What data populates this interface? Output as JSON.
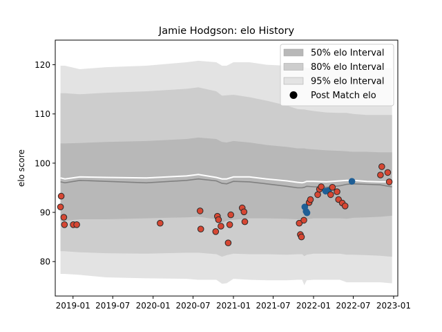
{
  "chart_data": {
    "type": "line",
    "title": "Jamie Hodgson: elo History",
    "xlabel": "",
    "ylabel": "elo score",
    "xlim": [
      "2018-10-12",
      "2023-01-20"
    ],
    "ylim": [
      73,
      125
    ],
    "x_ticks": [
      "2019-01",
      "2019-07",
      "2020-01",
      "2020-07",
      "2021-01",
      "2021-07",
      "2022-01",
      "2022-07",
      "2023-01"
    ],
    "y_ticks": [
      80,
      90,
      100,
      110,
      120
    ],
    "grid": false,
    "legend_position": "upper right",
    "colors": {
      "band95": "#e3e3e3",
      "band80": "#cdcdcd",
      "band50": "#b8b8b8",
      "median_line": "#808080",
      "mean_line": "#ffffff",
      "red_point": "#d64733",
      "blue_point": "#1f5f96",
      "point_edge": "#2a2a2a"
    },
    "legend": [
      {
        "label": "50% elo Interval",
        "kind": "band50"
      },
      {
        "label": "80% elo Interval",
        "kind": "band80"
      },
      {
        "label": "95% elo Interval",
        "kind": "band95"
      },
      {
        "label": "Post Match elo",
        "kind": "marker"
      }
    ],
    "series": [
      {
        "name": "95% elo Interval",
        "type": "band",
        "x": [
          "2018-11-05",
          "2018-11-25",
          "2019-02-01",
          "2019-06-01",
          "2019-12-01",
          "2020-06-01",
          "2020-07-25",
          "2020-10-15",
          "2020-11-10",
          "2020-12-01",
          "2021-01-01",
          "2021-03-15",
          "2021-06-01",
          "2021-09-01",
          "2021-10-20",
          "2021-11-10",
          "2021-11-20",
          "2021-12-01",
          "2022-01-01",
          "2022-03-01",
          "2022-05-01",
          "2022-06-01",
          "2022-07-01",
          "2022-09-01",
          "2022-11-01",
          "2022-12-20",
          "2022-12-25"
        ],
        "upper": [
          119.8,
          119.8,
          119.1,
          119.5,
          119.8,
          120.5,
          120.8,
          120.5,
          119.8,
          119.8,
          120.5,
          120.5,
          120.0,
          119.8,
          119.5,
          119.5,
          119.5,
          119.3,
          119.3,
          119.3,
          119.3,
          119.3,
          119.3,
          119.3,
          119.3,
          119.3,
          119.3
        ],
        "lower": [
          77.5,
          77.5,
          77.3,
          76.8,
          76.6,
          76.5,
          76.3,
          76.3,
          75.5,
          75.6,
          76.5,
          76.3,
          76.2,
          76.2,
          76.3,
          76.3,
          75.2,
          76.2,
          76.3,
          76.3,
          76.3,
          75.8,
          75.8,
          75.8,
          75.8,
          75.6,
          75.6
        ]
      },
      {
        "name": "80% elo Interval",
        "type": "band",
        "x": [
          "2018-11-05",
          "2018-11-25",
          "2019-02-01",
          "2019-06-01",
          "2019-12-01",
          "2020-06-01",
          "2020-07-25",
          "2020-10-15",
          "2020-11-10",
          "2020-12-01",
          "2021-01-01",
          "2021-03-15",
          "2021-06-01",
          "2021-09-01",
          "2021-10-20",
          "2021-11-10",
          "2021-11-20",
          "2021-12-01",
          "2022-01-01",
          "2022-03-01",
          "2022-05-01",
          "2022-06-01",
          "2022-07-01",
          "2022-09-01",
          "2022-11-01",
          "2022-12-20",
          "2022-12-25"
        ],
        "upper": [
          114.2,
          114.2,
          114.0,
          114.3,
          114.6,
          115.1,
          115.4,
          114.6,
          113.7,
          113.8,
          113.9,
          113.4,
          112.7,
          111.7,
          111.0,
          110.9,
          110.9,
          110.8,
          110.6,
          110.3,
          110.2,
          110.2,
          110.0,
          109.8,
          109.8,
          109.8,
          109.8
        ],
        "lower": [
          82.1,
          82.1,
          81.9,
          81.7,
          81.6,
          81.8,
          81.8,
          81.5,
          81.0,
          81.3,
          81.6,
          81.5,
          81.5,
          81.4,
          81.5,
          81.5,
          81.1,
          81.4,
          81.6,
          81.6,
          81.6,
          81.4,
          81.4,
          81.3,
          81.2,
          81.0,
          81.0
        ]
      },
      {
        "name": "50% elo Interval",
        "type": "band",
        "x": [
          "2018-11-05",
          "2018-11-25",
          "2019-02-01",
          "2019-06-01",
          "2019-12-01",
          "2020-06-01",
          "2020-07-25",
          "2020-10-15",
          "2020-11-10",
          "2020-12-01",
          "2021-01-01",
          "2021-03-15",
          "2021-06-01",
          "2021-09-01",
          "2021-10-20",
          "2021-11-10",
          "2021-11-20",
          "2021-12-01",
          "2022-01-01",
          "2022-03-01",
          "2022-05-01",
          "2022-06-01",
          "2022-07-01",
          "2022-09-01",
          "2022-11-01",
          "2022-12-20",
          "2022-12-25"
        ],
        "upper": [
          104.0,
          104.0,
          104.1,
          104.3,
          104.5,
          104.9,
          105.2,
          104.9,
          104.3,
          104.2,
          104.5,
          104.2,
          103.7,
          103.3,
          103.0,
          103.0,
          103.0,
          102.9,
          102.8,
          102.6,
          102.5,
          102.4,
          102.3,
          102.3,
          102.2,
          102.2,
          102.2
        ],
        "lower": [
          88.3,
          88.3,
          88.6,
          88.6,
          88.8,
          89.0,
          89.1,
          88.6,
          87.9,
          88.3,
          88.5,
          88.8,
          88.8,
          88.7,
          88.6,
          88.6,
          88.3,
          88.6,
          88.8,
          88.8,
          88.8,
          88.7,
          88.9,
          89.0,
          89.1,
          89.3,
          89.3
        ]
      },
      {
        "name": "",
        "type": "line",
        "color": "#808080",
        "x": [
          "2018-11-05",
          "2018-11-25",
          "2019-02-01",
          "2019-06-01",
          "2019-12-01",
          "2020-06-01",
          "2020-07-25",
          "2020-10-15",
          "2020-11-10",
          "2020-12-01",
          "2021-01-01",
          "2021-03-15",
          "2021-06-01",
          "2021-09-01",
          "2021-10-20",
          "2021-11-10",
          "2021-11-20",
          "2021-12-01",
          "2022-01-01",
          "2022-03-01",
          "2022-05-01",
          "2022-06-01",
          "2022-07-01",
          "2022-09-01",
          "2022-11-01",
          "2022-12-20",
          "2022-12-25"
        ],
        "y": [
          96.2,
          96.0,
          96.5,
          96.3,
          96.0,
          96.5,
          96.8,
          96.4,
          95.9,
          95.8,
          96.3,
          96.2,
          95.8,
          95.3,
          95.0,
          95.0,
          95.1,
          95.3,
          95.2,
          95.1,
          95.4,
          95.7,
          95.8,
          95.7,
          95.6,
          95.2,
          95.2
        ]
      },
      {
        "name": "",
        "type": "line",
        "color": "#ffffff",
        "x": [
          "2018-11-05",
          "2018-11-25",
          "2019-02-01",
          "2019-06-01",
          "2019-12-01",
          "2020-06-01",
          "2020-07-25",
          "2020-10-15",
          "2020-11-10",
          "2020-12-01",
          "2021-01-01",
          "2021-03-15",
          "2021-06-01",
          "2021-09-01",
          "2021-10-20",
          "2021-11-10",
          "2021-11-20",
          "2021-12-01",
          "2022-01-01",
          "2022-03-01",
          "2022-05-01",
          "2022-06-01",
          "2022-07-01",
          "2022-09-01",
          "2022-11-01",
          "2022-12-20",
          "2022-12-25"
        ],
        "y": [
          97.0,
          96.8,
          97.2,
          97.1,
          97.0,
          97.4,
          97.7,
          97.1,
          96.8,
          96.8,
          97.2,
          97.2,
          96.8,
          96.4,
          96.1,
          96.0,
          96.1,
          96.3,
          96.3,
          96.2,
          96.4,
          96.5,
          96.5,
          96.3,
          96.2,
          96.2,
          96.2
        ]
      }
    ],
    "points": {
      "name": "Post Match elo",
      "type": "scatter",
      "data": [
        {
          "x": "2018-11-05",
          "y": 91.1,
          "color": "red"
        },
        {
          "x": "2018-11-08",
          "y": 93.3,
          "color": "red"
        },
        {
          "x": "2018-11-20",
          "y": 89.0,
          "color": "red"
        },
        {
          "x": "2018-11-23",
          "y": 87.5,
          "color": "red"
        },
        {
          "x": "2019-01-02",
          "y": 87.5,
          "color": "red"
        },
        {
          "x": "2019-01-18",
          "y": 87.5,
          "color": "red"
        },
        {
          "x": "2020-02-02",
          "y": 87.8,
          "color": "red"
        },
        {
          "x": "2020-08-02",
          "y": 90.3,
          "color": "red"
        },
        {
          "x": "2020-08-05",
          "y": 86.6,
          "color": "red"
        },
        {
          "x": "2020-10-12",
          "y": 86.1,
          "color": "red"
        },
        {
          "x": "2020-10-20",
          "y": 89.2,
          "color": "red"
        },
        {
          "x": "2020-10-25",
          "y": 88.5,
          "color": "red"
        },
        {
          "x": "2020-11-05",
          "y": 87.2,
          "color": "red"
        },
        {
          "x": "2020-12-08",
          "y": 83.8,
          "color": "red"
        },
        {
          "x": "2020-12-15",
          "y": 87.5,
          "color": "red"
        },
        {
          "x": "2020-12-20",
          "y": 89.5,
          "color": "red"
        },
        {
          "x": "2021-02-10",
          "y": 90.9,
          "color": "red"
        },
        {
          "x": "2021-02-18",
          "y": 90.1,
          "color": "red"
        },
        {
          "x": "2021-02-22",
          "y": 88.1,
          "color": "red"
        },
        {
          "x": "2021-10-28",
          "y": 87.8,
          "color": "red"
        },
        {
          "x": "2021-11-02",
          "y": 85.5,
          "color": "red"
        },
        {
          "x": "2021-11-07",
          "y": 85.0,
          "color": "red"
        },
        {
          "x": "2021-11-18",
          "y": 88.4,
          "color": "red"
        },
        {
          "x": "2021-11-22",
          "y": 91.1,
          "color": "blue"
        },
        {
          "x": "2021-11-28",
          "y": 90.2,
          "color": "blue"
        },
        {
          "x": "2021-12-02",
          "y": 89.9,
          "color": "blue"
        },
        {
          "x": "2021-12-12",
          "y": 92.0,
          "color": "red"
        },
        {
          "x": "2021-12-18",
          "y": 92.6,
          "color": "red"
        },
        {
          "x": "2022-01-20",
          "y": 93.6,
          "color": "red"
        },
        {
          "x": "2022-01-28",
          "y": 94.7,
          "color": "red"
        },
        {
          "x": "2022-02-05",
          "y": 95.2,
          "color": "red"
        },
        {
          "x": "2022-02-25",
          "y": 94.3,
          "color": "blue"
        },
        {
          "x": "2022-03-10",
          "y": 94.4,
          "color": "blue"
        },
        {
          "x": "2022-03-20",
          "y": 93.6,
          "color": "red"
        },
        {
          "x": "2022-03-28",
          "y": 95.1,
          "color": "red"
        },
        {
          "x": "2022-04-18",
          "y": 94.2,
          "color": "red"
        },
        {
          "x": "2022-04-25",
          "y": 92.6,
          "color": "red"
        },
        {
          "x": "2022-05-12",
          "y": 91.9,
          "color": "red"
        },
        {
          "x": "2022-05-25",
          "y": 91.3,
          "color": "red"
        },
        {
          "x": "2022-06-25",
          "y": 96.3,
          "color": "blue"
        },
        {
          "x": "2022-11-02",
          "y": 97.6,
          "color": "red"
        },
        {
          "x": "2022-11-08",
          "y": 99.3,
          "color": "red"
        },
        {
          "x": "2022-12-05",
          "y": 98.1,
          "color": "red"
        },
        {
          "x": "2022-12-12",
          "y": 96.2,
          "color": "red"
        }
      ]
    }
  }
}
